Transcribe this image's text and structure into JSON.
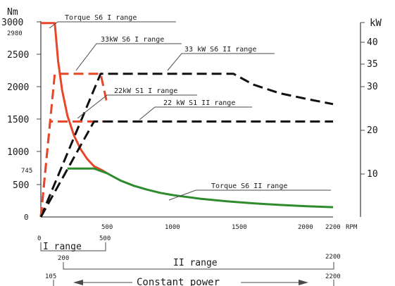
{
  "chart_data": {
    "type": "line",
    "title": "",
    "xlabel": "RPM",
    "ylabel_left": "Nm",
    "ylabel_right": "kW",
    "xlim": [
      0,
      2200
    ],
    "ylim_left": [
      0,
      3000
    ],
    "ylim_right": [
      0,
      50
    ],
    "x_ticks": [
      "500",
      "1000",
      "1500",
      "2000",
      "2200"
    ],
    "y_left_ticks": [
      "500",
      "1000",
      "1500",
      "2000",
      "2500",
      "3000"
    ],
    "y_left_extra": [
      "0",
      "745",
      "2980"
    ],
    "y_right_ticks": [
      "10",
      "20",
      "30",
      "35",
      "40"
    ],
    "grid": false,
    "colors": {
      "torque_s6_1": "#e8462a",
      "torque_s6_2": "#2e8b2e",
      "power_s6_1": "#e8462a",
      "power_s6_2": "#111111",
      "power_s1": "#e8462a"
    },
    "series": [
      {
        "name": "Torque S6 I range",
        "axis": "left",
        "style": "solid",
        "color": "#e8462a",
        "x": [
          0,
          40,
          105,
          130,
          160,
          200,
          250,
          300,
          350,
          400,
          450,
          500
        ],
        "y": [
          2980,
          2980,
          2980,
          2400,
          1950,
          1560,
          1250,
          1040,
          890,
          780,
          730,
          670
        ]
      },
      {
        "name": "Torque S6 II range",
        "axis": "left",
        "style": "solid",
        "color": "#2e8b2e",
        "x": [
          200,
          300,
          400,
          500,
          600,
          700,
          800,
          900,
          1000,
          1200,
          1400,
          1600,
          1800,
          2000,
          2200
        ],
        "y": [
          745,
          745,
          745,
          670,
          560,
          480,
          420,
          370,
          335,
          280,
          240,
          210,
          185,
          165,
          150
        ]
      },
      {
        "name": "33kW S6 I range",
        "axis": "right",
        "style": "dash",
        "color": "#e8462a",
        "x": [
          0,
          105,
          450,
          500
        ],
        "y": [
          0,
          33,
          33,
          26
        ]
      },
      {
        "name": "33 kW S6 II range",
        "axis": "right",
        "style": "dash",
        "color": "#111111",
        "x": [
          0,
          450,
          1450,
          1600,
          1800,
          2000,
          2200
        ],
        "y": [
          0,
          33,
          33,
          30.5,
          28.5,
          27.2,
          26
        ]
      },
      {
        "name": "22kW S1 I range",
        "axis": "right",
        "style": "dash",
        "color": "#e8462a",
        "x": [
          0,
          70,
          500
        ],
        "y": [
          0,
          22,
          22
        ]
      },
      {
        "name": "22 kW S1 II range",
        "axis": "right",
        "style": "dash",
        "color": "#111111",
        "x": [
          0,
          400,
          2200
        ],
        "y": [
          0,
          22,
          22
        ]
      }
    ],
    "annotations": [
      "Torque S6 I range",
      "33kW S6 I range",
      "33 kW S6 II range",
      "22kW S1 I range",
      "22 kW S1 II range",
      "Torque S6 II range"
    ],
    "range_bar_1": {
      "start": "0",
      "end": "500",
      "label": "I range"
    },
    "range_bar_2": {
      "start": "200",
      "end": "2200",
      "label": "II range"
    },
    "constant_power": {
      "start": "105",
      "end": "2200",
      "label": "Constant power"
    }
  }
}
